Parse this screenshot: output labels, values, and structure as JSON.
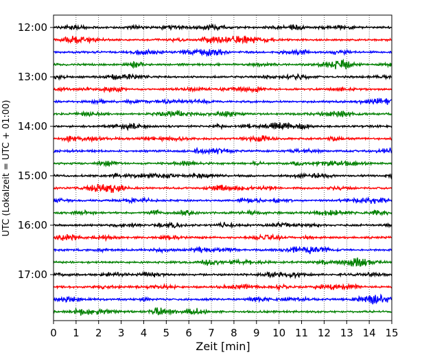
{
  "chart_data": {
    "type": "line",
    "title": "",
    "xlabel": "Zeit  [min]",
    "ylabel": "UTC (Lokalzeit = UTC + 01:00)",
    "xlim": [
      0,
      15
    ],
    "x_ticks": [
      "0",
      "1",
      "2",
      "3",
      "4",
      "5",
      "6",
      "7",
      "8",
      "9",
      "10",
      "11",
      "12",
      "13",
      "14",
      "15"
    ],
    "y_tick_labels": [
      "12:00",
      "13:00",
      "14:00",
      "15:00",
      "16:00",
      "17:00"
    ],
    "grid": "vertical dotted lines at each minute",
    "trace_interval_minutes": 15,
    "traces_per_hour": 4,
    "trace_start_times": [
      "12:00",
      "12:15",
      "12:30",
      "12:45",
      "13:00",
      "13:15",
      "13:30",
      "13:45",
      "14:00",
      "14:15",
      "14:30",
      "14:45",
      "15:00",
      "15:15",
      "15:30",
      "15:45",
      "16:00",
      "16:15",
      "16:30",
      "16:45",
      "17:00",
      "17:15",
      "17:30",
      "17:45"
    ],
    "trace_colors": [
      "#000000",
      "#ff0000",
      "#0000ff",
      "#008000"
    ]
  }
}
